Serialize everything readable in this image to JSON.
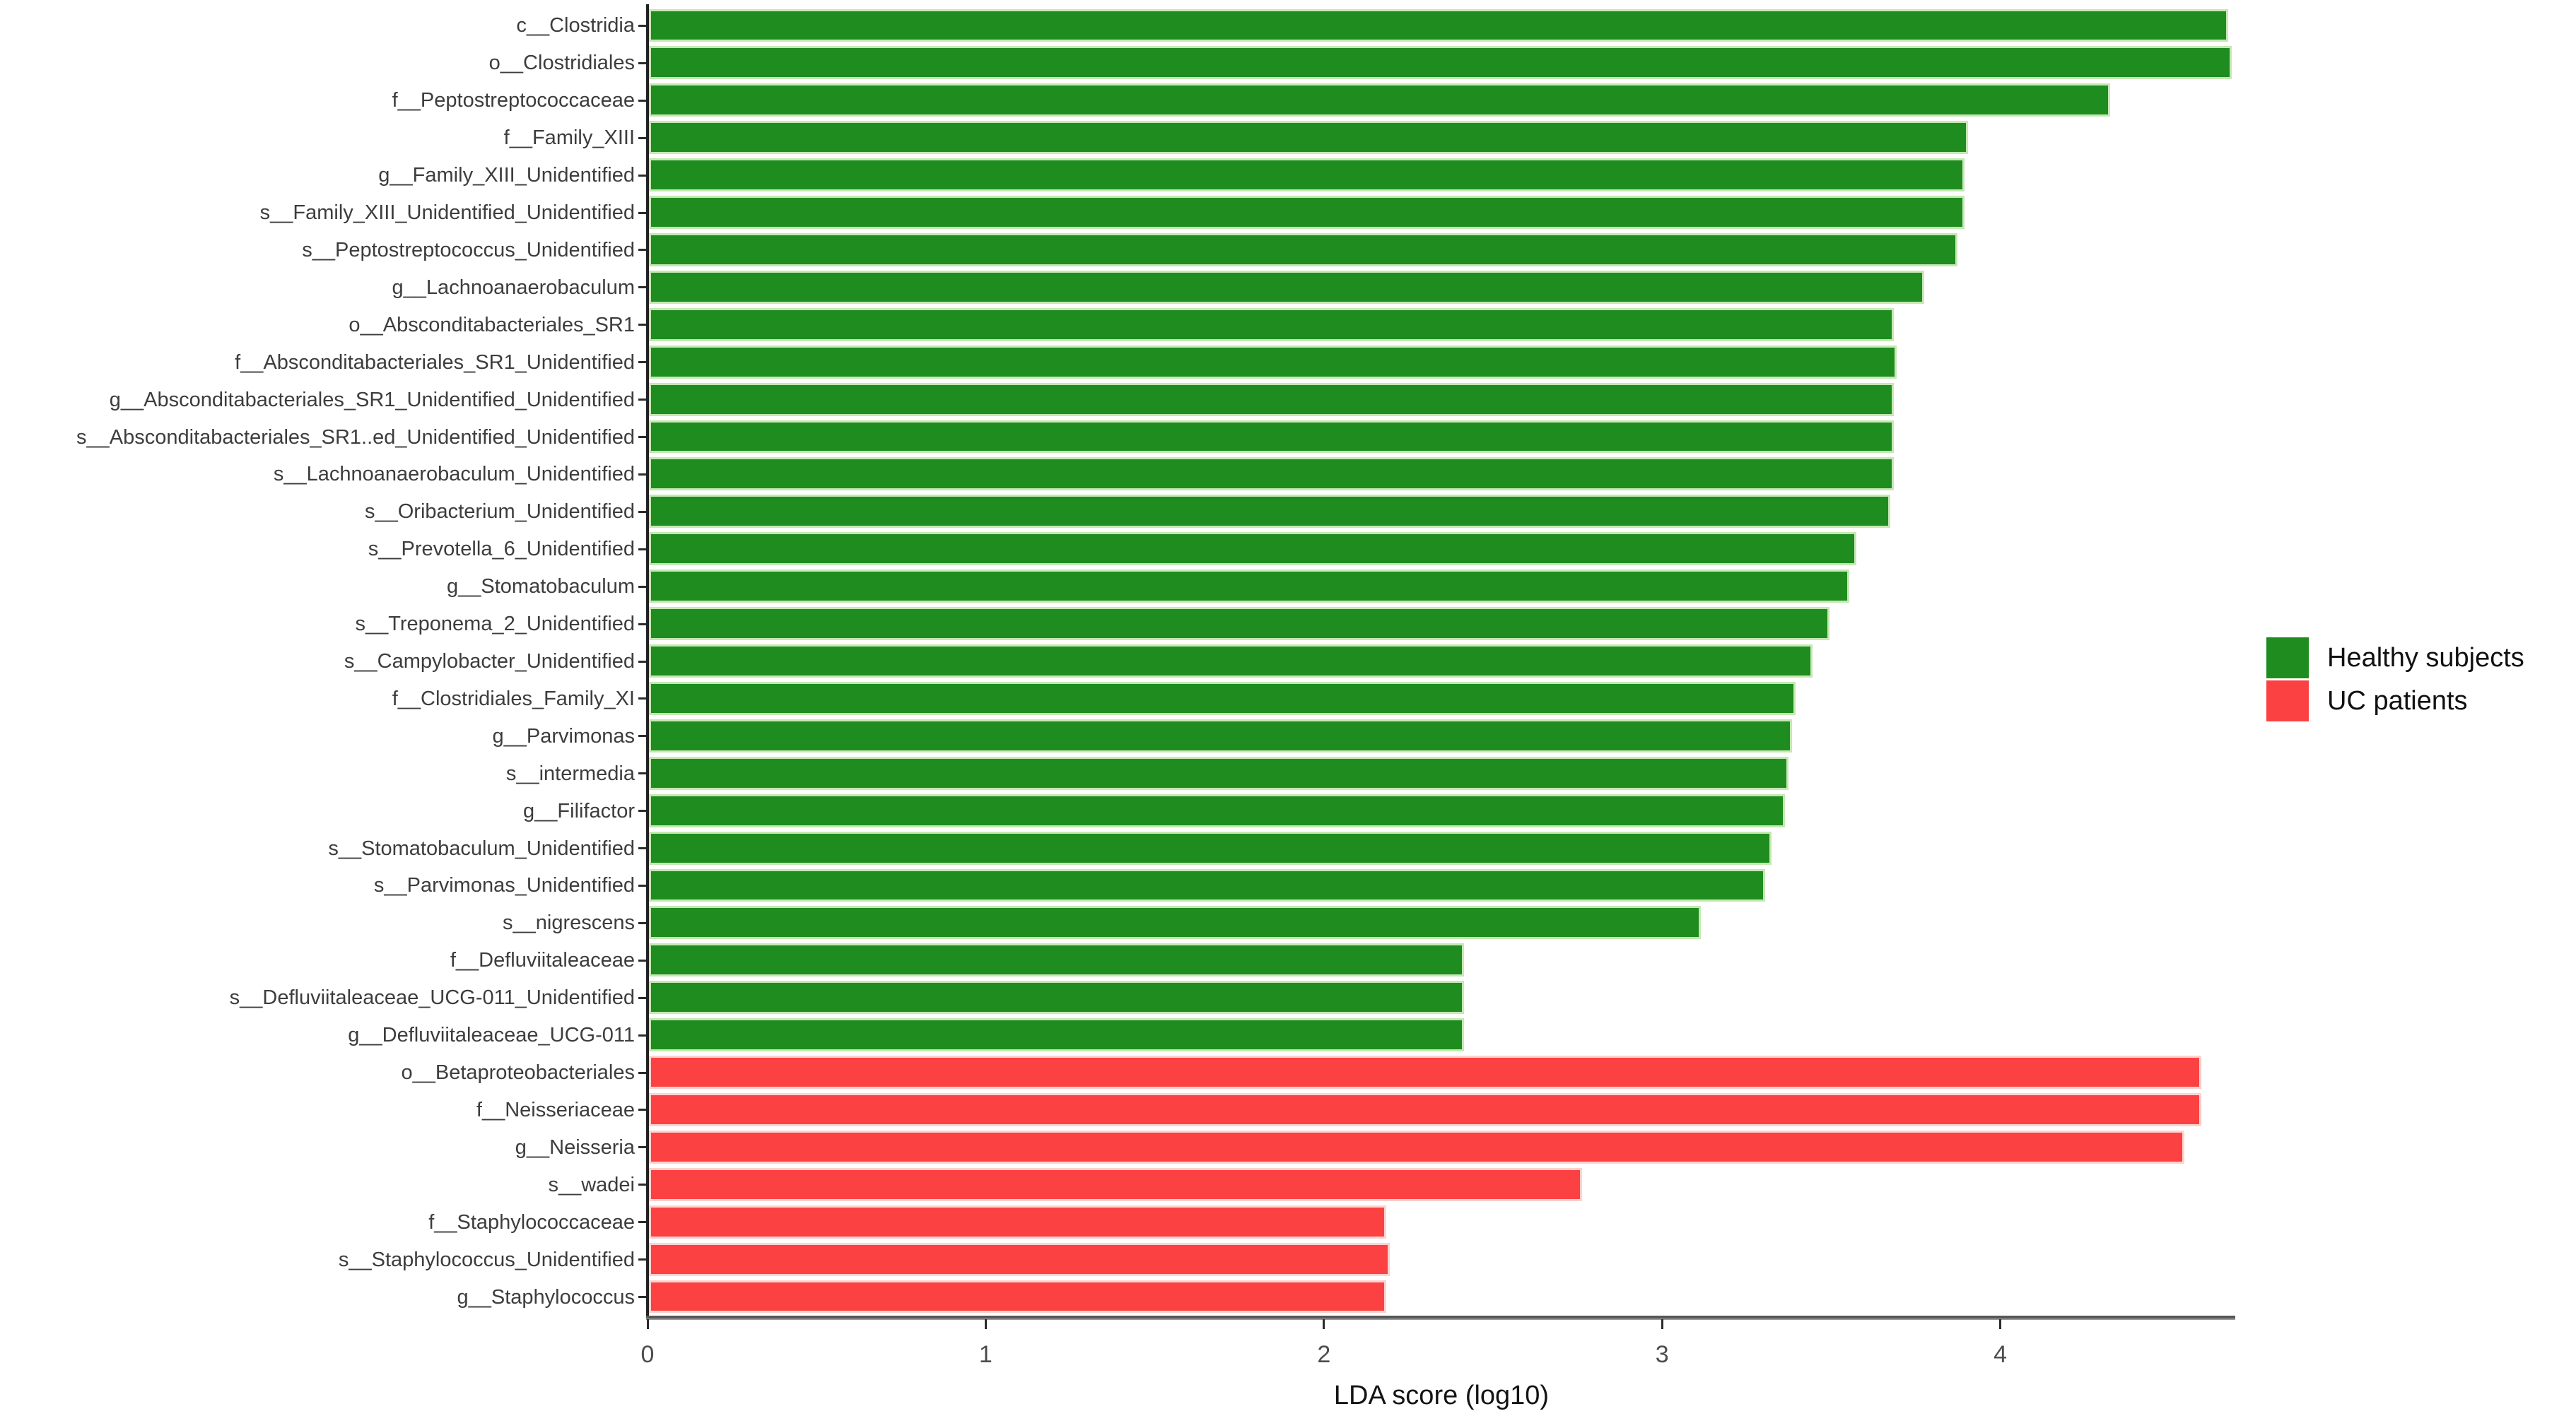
{
  "chart_data": {
    "type": "bar",
    "orientation": "horizontal",
    "title": "",
    "xlabel": "LDA score (log10)",
    "x_ticks": [
      0,
      1,
      2,
      3,
      4
    ],
    "xlim": [
      0,
      4.7
    ],
    "grid": false,
    "legend_position": "right",
    "legend": [
      {
        "label": "Healthy subjects",
        "color": "#1e8c1e"
      },
      {
        "label": "UC patients",
        "color": "#fb4141"
      }
    ],
    "series": [
      {
        "name": "Healthy subjects",
        "color": "#1e8c1e",
        "border_color": "#c6e8b4",
        "items": [
          {
            "label": "c__Clostridia",
            "value": 4.67
          },
          {
            "label": "o__Clostridiales",
            "value": 4.68
          },
          {
            "label": "f__Peptostreptococcaceae",
            "value": 4.32
          },
          {
            "label": "f__Family_XIII",
            "value": 3.9
          },
          {
            "label": "g__Family_XIII_Unidentified",
            "value": 3.89
          },
          {
            "label": "s__Family_XIII_Unidentified_Unidentified",
            "value": 3.89
          },
          {
            "label": "s__Peptostreptococcus_Unidentified",
            "value": 3.87
          },
          {
            "label": "g__Lachnoanaerobaculum",
            "value": 3.77
          },
          {
            "label": "o__Absconditabacteriales_SR1",
            "value": 3.68
          },
          {
            "label": "f__Absconditabacteriales_SR1_Unidentified",
            "value": 3.69
          },
          {
            "label": "g__Absconditabacteriales_SR1_Unidentified_Unidentified",
            "value": 3.68
          },
          {
            "label": "s__Absconditabacteriales_SR1..ed_Unidentified_Unidentified",
            "value": 3.68
          },
          {
            "label": "s__Lachnoanaerobaculum_Unidentified",
            "value": 3.68
          },
          {
            "label": "s__Oribacterium_Unidentified",
            "value": 3.67
          },
          {
            "label": "s__Prevotella_6_Unidentified",
            "value": 3.57
          },
          {
            "label": "g__Stomatobaculum",
            "value": 3.55
          },
          {
            "label": "s__Treponema_2_Unidentified",
            "value": 3.49
          },
          {
            "label": "s__Campylobacter_Unidentified",
            "value": 3.44
          },
          {
            "label": "f__Clostridiales_Family_XI",
            "value": 3.39
          },
          {
            "label": "g__Parvimonas",
            "value": 3.38
          },
          {
            "label": "s__intermedia",
            "value": 3.37
          },
          {
            "label": "g__Filifactor",
            "value": 3.36
          },
          {
            "label": "s__Stomatobaculum_Unidentified",
            "value": 3.32
          },
          {
            "label": "s__Parvimonas_Unidentified",
            "value": 3.3
          },
          {
            "label": "s__nigrescens",
            "value": 3.11
          },
          {
            "label": "f__Defluviitaleaceae",
            "value": 2.41
          },
          {
            "label": "s__Defluviitaleaceae_UCG-011_Unidentified",
            "value": 2.41
          },
          {
            "label": "g__Defluviitaleaceae_UCG-011",
            "value": 2.41
          }
        ]
      },
      {
        "name": "UC patients",
        "color": "#fb4141",
        "border_color": "#ffd2d0",
        "items": [
          {
            "label": "o__Betaproteobacteriales",
            "value": 4.59
          },
          {
            "label": "f__Neisseriaceae",
            "value": 4.59
          },
          {
            "label": "g__Neisseria",
            "value": 4.54
          },
          {
            "label": "s__wadei",
            "value": 2.76
          },
          {
            "label": "f__Staphylococcaceae",
            "value": 2.18
          },
          {
            "label": "s__Staphylococcus_Unidentified",
            "value": 2.19
          },
          {
            "label": "g__Staphylococcus",
            "value": 2.18
          }
        ]
      }
    ]
  }
}
